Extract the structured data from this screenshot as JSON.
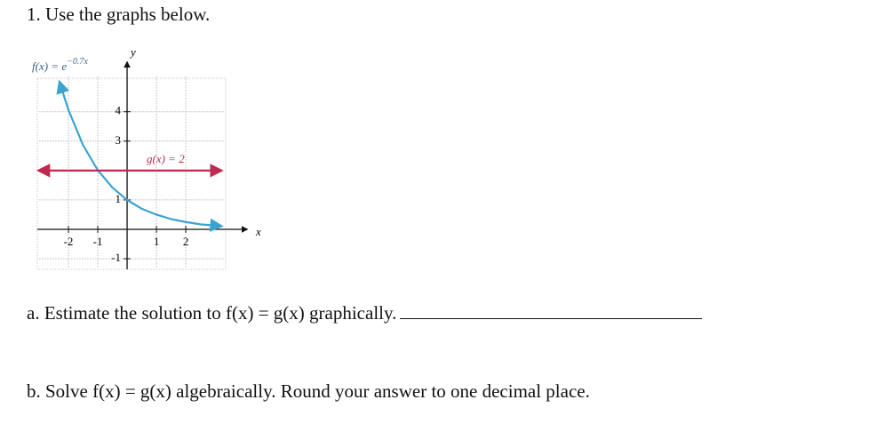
{
  "question": {
    "title": "1. Use the graphs below.",
    "parts": [
      {
        "text": "a. Estimate the solution to f(x) = g(x) graphically."
      },
      {
        "text": "b. Solve f(x) = g(x) algebraically. Round your answer to one decimal place."
      }
    ]
  },
  "chart_data": {
    "type": "line",
    "x_label": "x",
    "y_label": "y",
    "xlim": [
      -3,
      3.3
    ],
    "ylim": [
      -1.3,
      5.2
    ],
    "xticks": [
      -2,
      -1,
      1,
      2
    ],
    "yticks": [
      -1,
      1,
      3,
      4
    ],
    "grid": true,
    "series": [
      {
        "name": "f(x) = e",
        "name_exponent": "−0.7x",
        "color": "#3ba3d0",
        "x": [
          -2.3,
          -2,
          -1.5,
          -1,
          -0.5,
          0,
          0.5,
          1,
          1.5,
          2,
          2.5,
          3.2
        ],
        "values": [
          5.0,
          4.06,
          2.86,
          2.01,
          1.42,
          1,
          0.7,
          0.5,
          0.35,
          0.25,
          0.17,
          0.11
        ]
      },
      {
        "name": "g(x) = 2",
        "color": "#c0294f",
        "x": [
          -3,
          3.2
        ],
        "values": [
          2,
          2
        ]
      }
    ]
  }
}
